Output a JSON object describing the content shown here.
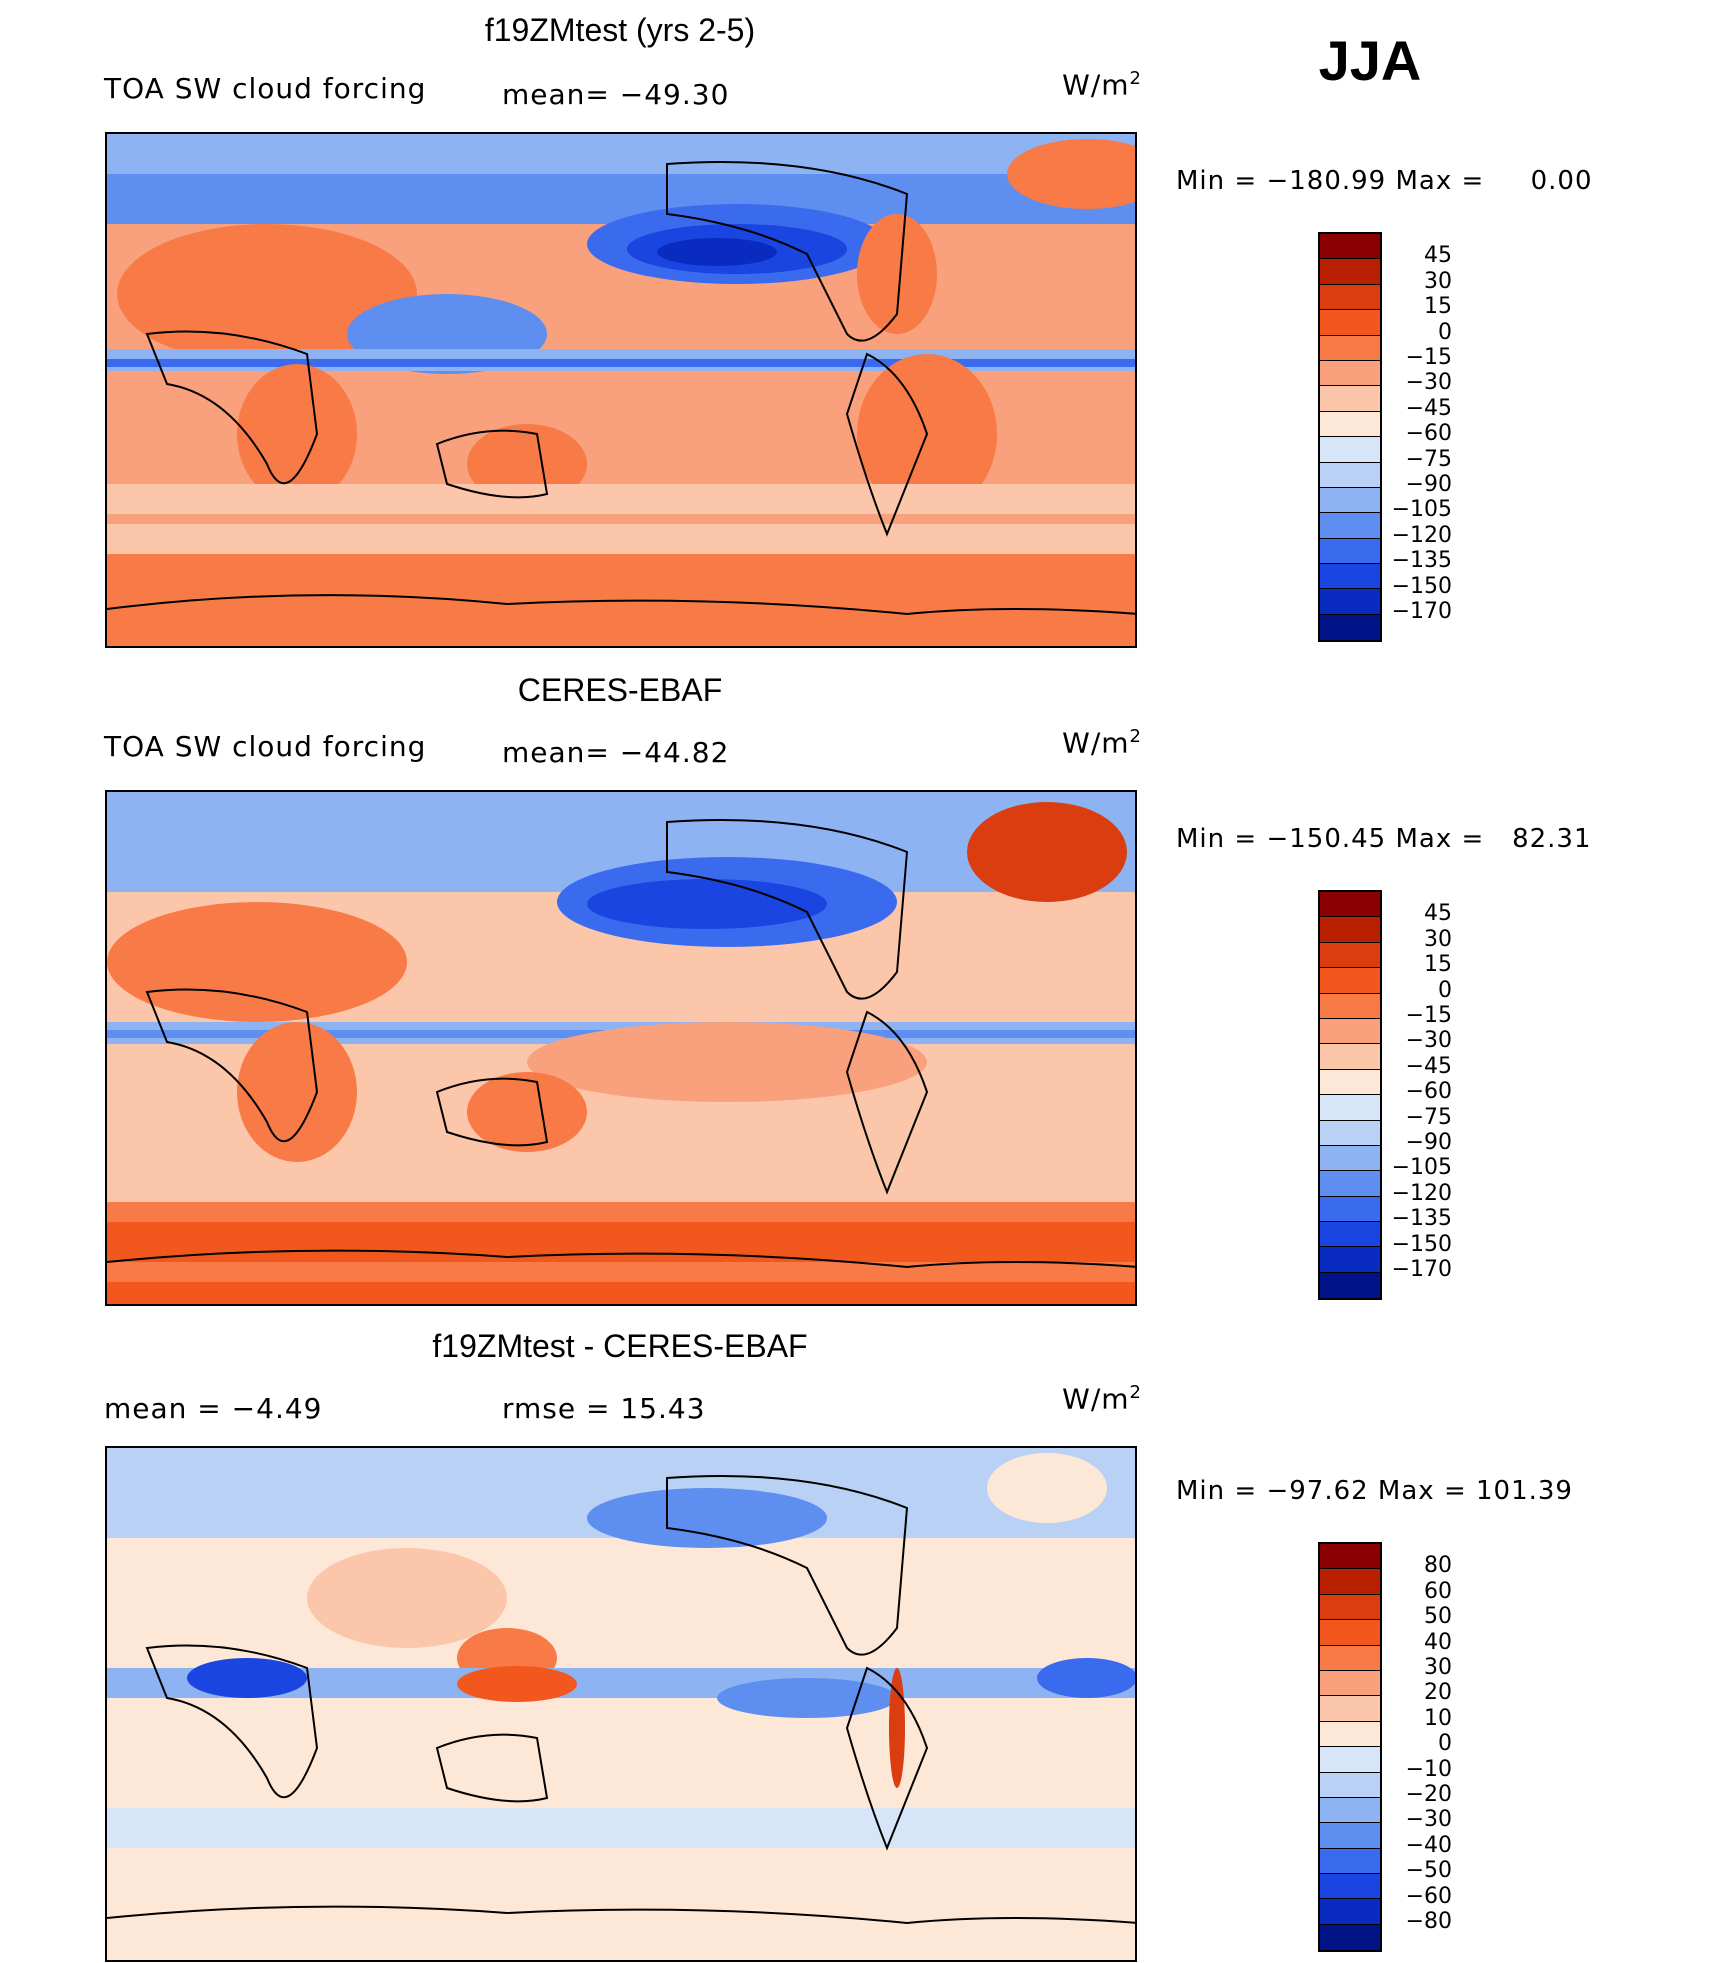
{
  "season": "JJA",
  "panels": [
    {
      "title": "f19ZMtest (yrs 2-5)",
      "left_text": "TOA SW cloud forcing",
      "mid_text": "mean= −49.30",
      "units_base": "W/m",
      "units_exp": "2",
      "min_max": "Min = −180.99 Max =     0.00",
      "colorbar": {
        "labels": [
          "45",
          "30",
          "15",
          "0",
          "−15",
          "−30",
          "−45",
          "−60",
          "−75",
          "−90",
          "−105",
          "−120",
          "−135",
          "−150",
          "−170"
        ],
        "colors": [
          "#8b0000",
          "#b82000",
          "#d93d10",
          "#f2581e",
          "#f77a47",
          "#f9a07d",
          "#fcc6ab",
          "#fde8d8",
          "#d6e6f8",
          "#b8d1f5",
          "#8db3f2",
          "#5e8ff0",
          "#3a6bef",
          "#1a45e0",
          "#0a2bc0",
          "#001488"
        ]
      }
    },
    {
      "title": "CERES-EBAF",
      "left_text": "TOA SW cloud forcing",
      "mid_text": "mean= −44.82",
      "units_base": "W/m",
      "units_exp": "2",
      "min_max": "Min = −150.45 Max =   82.31",
      "colorbar": {
        "labels": [
          "45",
          "30",
          "15",
          "0",
          "−15",
          "−30",
          "−45",
          "−60",
          "−75",
          "−90",
          "−105",
          "−120",
          "−135",
          "−150",
          "−170"
        ],
        "colors": [
          "#8b0000",
          "#b82000",
          "#d93d10",
          "#f2581e",
          "#f77a47",
          "#f9a07d",
          "#fcc6ab",
          "#fde8d8",
          "#d6e6f8",
          "#b8d1f5",
          "#8db3f2",
          "#5e8ff0",
          "#3a6bef",
          "#1a45e0",
          "#0a2bc0",
          "#001488"
        ]
      }
    },
    {
      "title": "f19ZMtest - CERES-EBAF",
      "left_text": "mean =   −4.49",
      "mid_text": "rmse =   15.43",
      "units_base": "W/m",
      "units_exp": "2",
      "min_max": "Min = −97.62 Max = 101.39",
      "colorbar": {
        "labels": [
          "80",
          "60",
          "50",
          "40",
          "30",
          "20",
          "10",
          "0",
          "−10",
          "−20",
          "−30",
          "−40",
          "−50",
          "−60",
          "−80"
        ],
        "colors": [
          "#8b0000",
          "#b82000",
          "#d93d10",
          "#f2581e",
          "#f77a47",
          "#f9a07d",
          "#fcc6ab",
          "#fde8d8",
          "#d6e6f8",
          "#b8d1f5",
          "#8db3f2",
          "#5e8ff0",
          "#3a6bef",
          "#1a45e0",
          "#0a2bc0",
          "#001488"
        ]
      }
    }
  ]
}
